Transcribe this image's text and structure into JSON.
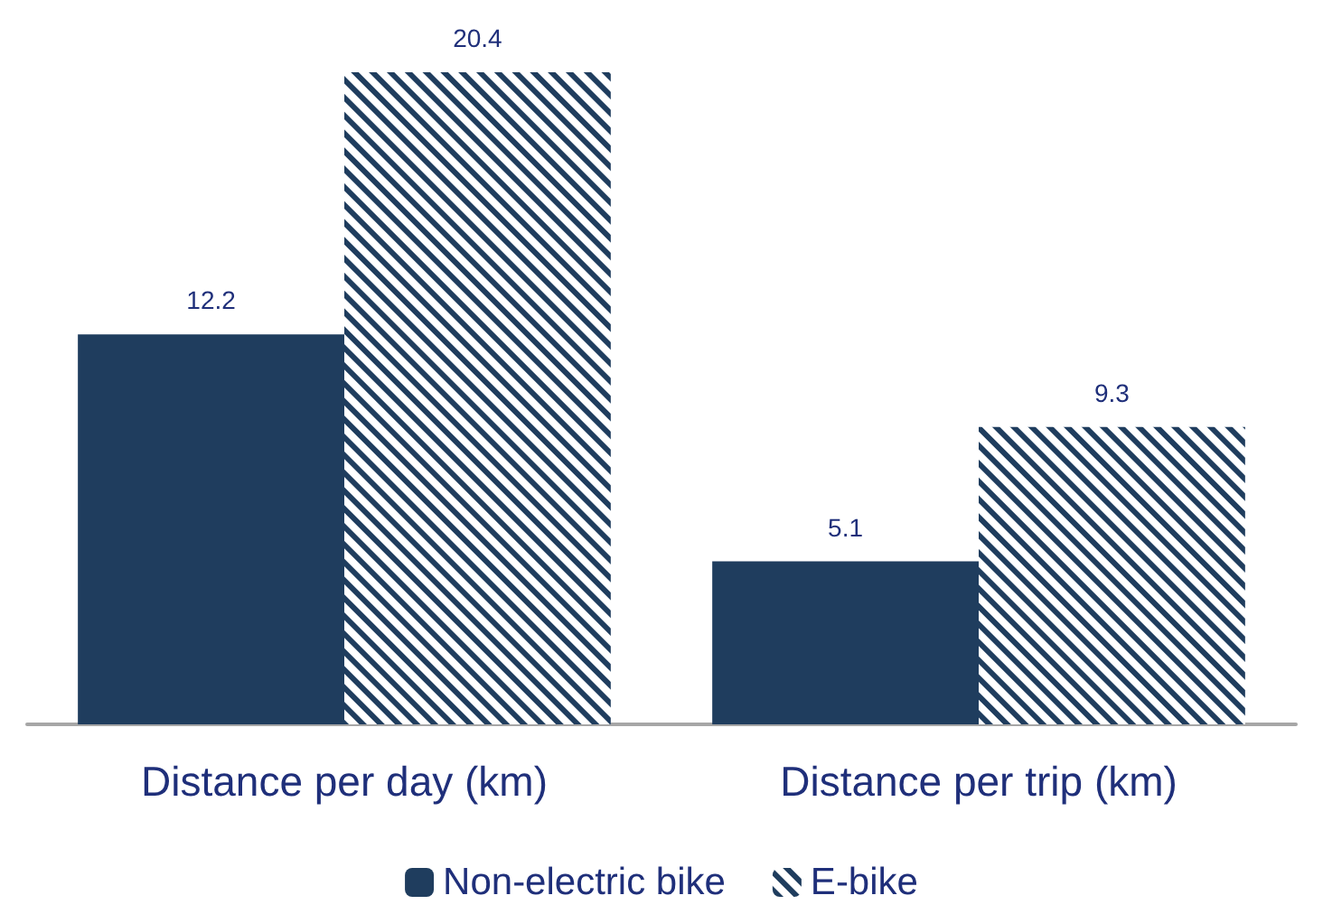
{
  "chart_data": {
    "type": "bar",
    "categories": [
      "Distance per day (km)",
      "Distance per trip (km)"
    ],
    "series": [
      {
        "name": "Non-electric bike",
        "color": "#1f3d5e",
        "values": [
          12.2,
          5.1
        ]
      },
      {
        "name": "E-bike",
        "color": "#1f3d5e",
        "values": [
          20.4,
          9.3
        ]
      }
    ],
    "data_labels": true,
    "legend": "bottom",
    "grid": false,
    "tick_labels": "x"
  }
}
